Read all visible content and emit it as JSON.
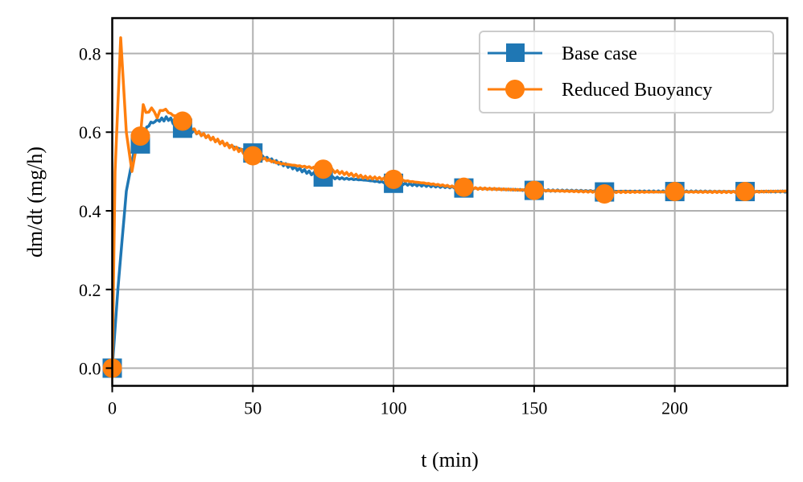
{
  "chart_data": {
    "type": "line",
    "title": "",
    "xlabel": "t (min)",
    "ylabel": "dm/dt (mg/h)",
    "xlim": [
      0,
      240
    ],
    "ylim": [
      -0.045,
      0.89
    ],
    "xticks": [
      0,
      50,
      100,
      150,
      200
    ],
    "xtick_labels": [
      "0",
      "50",
      "100",
      "150",
      "200"
    ],
    "yticks": [
      0.0,
      0.2,
      0.4,
      0.6,
      0.8
    ],
    "ytick_labels": [
      "0.0",
      "0.2",
      "0.4",
      "0.6",
      "0.8"
    ],
    "grid": true,
    "legend_position": "upper right",
    "series": [
      {
        "name": "Base case",
        "color": "#1f77b4",
        "marker": "square",
        "x": [
          0,
          2,
          5,
          8,
          10,
          13,
          16,
          20,
          25,
          30,
          35,
          40,
          50,
          60,
          75,
          90,
          100,
          125,
          150,
          175,
          200,
          225,
          240
        ],
        "y": [
          0.0,
          0.2,
          0.45,
          0.56,
          0.57,
          0.62,
          0.63,
          0.635,
          0.61,
          0.6,
          0.585,
          0.57,
          0.547,
          0.52,
          0.486,
          0.478,
          0.47,
          0.458,
          0.452,
          0.45,
          0.449,
          0.449,
          0.449
        ],
        "marker_x": [
          0,
          10,
          25,
          50,
          75,
          100,
          125,
          150,
          175,
          200,
          225
        ],
        "marker_y": [
          0.0,
          0.57,
          0.61,
          0.547,
          0.486,
          0.47,
          0.458,
          0.452,
          0.448,
          0.449,
          0.449
        ]
      },
      {
        "name": "Reduced Buoyancy",
        "color": "#ff7f0e",
        "marker": "circle",
        "x": [
          0,
          1,
          3,
          5,
          7,
          9,
          10,
          11,
          12,
          14,
          16,
          18,
          20,
          25,
          30,
          35,
          40,
          50,
          60,
          75,
          90,
          100,
          125,
          150,
          175,
          200,
          225,
          240
        ],
        "y": [
          0.0,
          0.5,
          0.84,
          0.6,
          0.5,
          0.58,
          0.59,
          0.67,
          0.65,
          0.66,
          0.64,
          0.66,
          0.65,
          0.63,
          0.6,
          0.585,
          0.57,
          0.54,
          0.52,
          0.506,
          0.485,
          0.48,
          0.458,
          0.452,
          0.448,
          0.448,
          0.448,
          0.45
        ],
        "marker_x": [
          0,
          10,
          25,
          50,
          75,
          100,
          125,
          150,
          175,
          200,
          225
        ],
        "marker_y": [
          0.0,
          0.59,
          0.628,
          0.54,
          0.506,
          0.48,
          0.46,
          0.452,
          0.443,
          0.449,
          0.449
        ]
      }
    ]
  },
  "legend": {
    "items": [
      {
        "label": "Base case",
        "color": "#1f77b4",
        "marker": "square"
      },
      {
        "label": "Reduced Buoyancy",
        "color": "#ff7f0e",
        "marker": "circle"
      }
    ]
  }
}
